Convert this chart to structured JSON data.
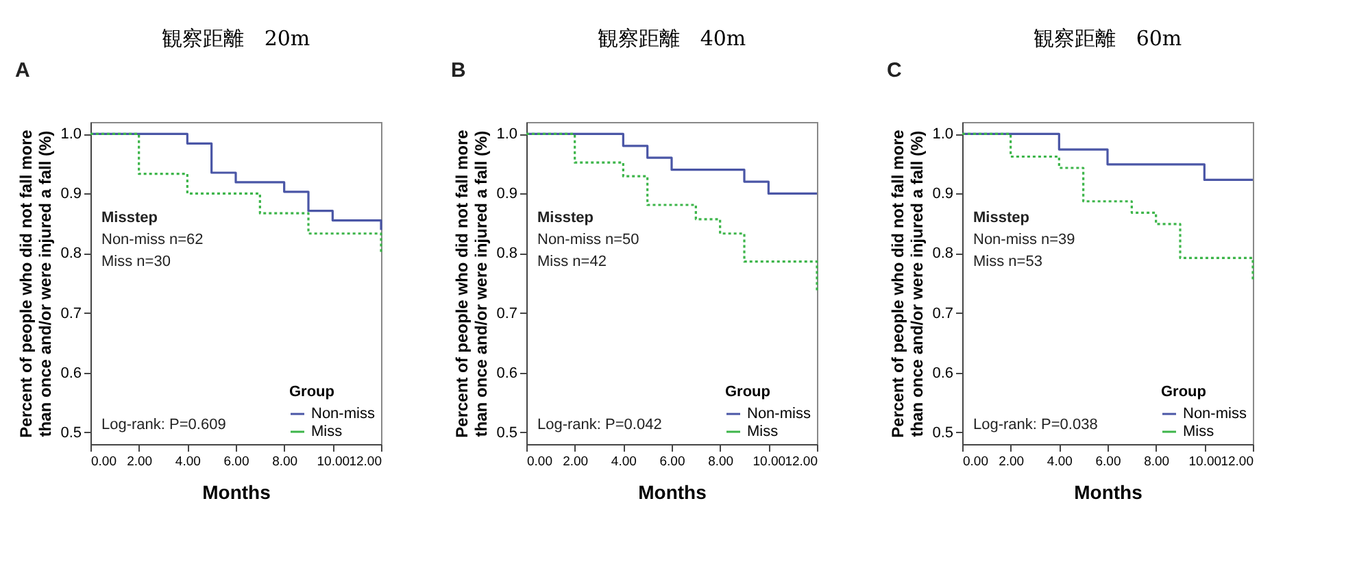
{
  "chart_data": [
    {
      "type": "step",
      "title": "観察距離　20m",
      "xlabel": "Months",
      "ylabel": "Percent of people who did not fall more than once and/or were injured a fall (%)",
      "legend_title": "Group",
      "legend": "bottom right",
      "grid": false,
      "marker": "none",
      "xlim": [
        0,
        12
      ],
      "xticks": [
        {
          "value": 0,
          "label": "0.00"
        },
        {
          "value": 2,
          "label": "2.00"
        },
        {
          "value": 4,
          "label": "4.00"
        },
        {
          "value": 6,
          "label": "6.00"
        },
        {
          "value": 8,
          "label": "8.00"
        },
        {
          "value": 10,
          "label": "10.00"
        },
        {
          "value": 12,
          "label": "12.00"
        }
      ],
      "ylim": [
        0.48,
        1.02
      ],
      "yticks": [
        {
          "value": 0.5,
          "label": "0.5"
        },
        {
          "value": 0.6,
          "label": "0.6"
        },
        {
          "value": 0.7,
          "label": "0.7"
        },
        {
          "value": 0.8,
          "label": "0.8"
        },
        {
          "value": 0.9,
          "label": "0.9"
        },
        {
          "value": 1,
          "label": "1.0"
        }
      ],
      "annotations": [
        "A",
        "Misstep",
        "Non-miss n=62",
        "Miss n=30",
        "Log-rank: P=0.609"
      ],
      "series": [
        {
          "name": "Non-miss",
          "color": "#4a56a6",
          "line_style": "solid",
          "x": [
            0,
            4,
            5,
            6,
            8,
            9,
            10,
            12,
            12
          ],
          "values": [
            1,
            0.984,
            0.935,
            0.919,
            0.903,
            0.871,
            0.855,
            0.855,
            0.839
          ]
        },
        {
          "name": "Miss",
          "color": "#3db54a",
          "line_style": "dotted",
          "x": [
            0,
            2,
            4,
            7,
            9,
            12,
            12
          ],
          "values": [
            1,
            0.933,
            0.9,
            0.867,
            0.833,
            0.833,
            0.8
          ]
        }
      ]
    },
    {
      "type": "step",
      "title": "観察距離　40m",
      "xlabel": "Months",
      "ylabel": "Percent of people who did not fall more than once and/or were injured a fall (%)",
      "legend_title": "Group",
      "legend": "bottom right",
      "grid": false,
      "marker": "none",
      "xlim": [
        0,
        12
      ],
      "xticks": [
        {
          "value": 0,
          "label": "0.00"
        },
        {
          "value": 2,
          "label": "2.00"
        },
        {
          "value": 4,
          "label": "4.00"
        },
        {
          "value": 6,
          "label": "6.00"
        },
        {
          "value": 8,
          "label": "8.00"
        },
        {
          "value": 10,
          "label": "10.00"
        },
        {
          "value": 12,
          "label": "12.00"
        }
      ],
      "ylim": [
        0.48,
        1.02
      ],
      "yticks": [
        {
          "value": 0.5,
          "label": "0.5"
        },
        {
          "value": 0.6,
          "label": "0.6"
        },
        {
          "value": 0.7,
          "label": "0.7"
        },
        {
          "value": 0.8,
          "label": "0.8"
        },
        {
          "value": 0.9,
          "label": "0.9"
        },
        {
          "value": 1,
          "label": "1.0"
        }
      ],
      "annotations": [
        "B",
        "Misstep",
        "Non-miss n=50",
        "Miss n=42",
        "Log-rank: P=0.042"
      ],
      "series": [
        {
          "name": "Non-miss",
          "color": "#4a56a6",
          "line_style": "solid",
          "x": [
            0,
            4,
            5,
            6,
            9,
            10,
            12
          ],
          "values": [
            1,
            0.98,
            0.96,
            0.94,
            0.92,
            0.9,
            0.9
          ]
        },
        {
          "name": "Miss",
          "color": "#3db54a",
          "line_style": "dotted",
          "x": [
            0,
            2,
            4,
            5,
            7,
            8,
            9,
            12,
            12
          ],
          "values": [
            1,
            0.952,
            0.929,
            0.881,
            0.857,
            0.833,
            0.786,
            0.786,
            0.738
          ]
        }
      ]
    },
    {
      "type": "step",
      "title": "観察距離　60m",
      "xlabel": "Months",
      "ylabel": "Percent of people who did not fall more than once and/or were injured a fall (%)",
      "legend_title": "Group",
      "legend": "bottom right",
      "grid": false,
      "marker": "none",
      "xlim": [
        0,
        12
      ],
      "xticks": [
        {
          "value": 0,
          "label": "0.00"
        },
        {
          "value": 2,
          "label": "2.00"
        },
        {
          "value": 4,
          "label": "4.00"
        },
        {
          "value": 6,
          "label": "6.00"
        },
        {
          "value": 8,
          "label": "8.00"
        },
        {
          "value": 10,
          "label": "10.00"
        },
        {
          "value": 12,
          "label": "12.00"
        }
      ],
      "ylim": [
        0.48,
        1.02
      ],
      "yticks": [
        {
          "value": 0.5,
          "label": "0.5"
        },
        {
          "value": 0.6,
          "label": "0.6"
        },
        {
          "value": 0.7,
          "label": "0.7"
        },
        {
          "value": 0.8,
          "label": "0.8"
        },
        {
          "value": 0.9,
          "label": "0.9"
        },
        {
          "value": 1,
          "label": "1.0"
        }
      ],
      "annotations": [
        "C",
        "Misstep",
        "Non-miss n=39",
        "Miss n=53",
        "Log-rank: P=0.038"
      ],
      "series": [
        {
          "name": "Non-miss",
          "color": "#4a56a6",
          "line_style": "solid",
          "x": [
            0,
            4,
            6,
            10,
            12
          ],
          "values": [
            1,
            0.974,
            0.949,
            0.923,
            0.923
          ]
        },
        {
          "name": "Miss",
          "color": "#3db54a",
          "line_style": "dotted",
          "x": [
            0,
            2,
            4,
            5,
            7,
            8,
            9,
            12,
            12
          ],
          "values": [
            1,
            0.962,
            0.943,
            0.887,
            0.868,
            0.849,
            0.792,
            0.792,
            0.755
          ]
        }
      ]
    }
  ]
}
